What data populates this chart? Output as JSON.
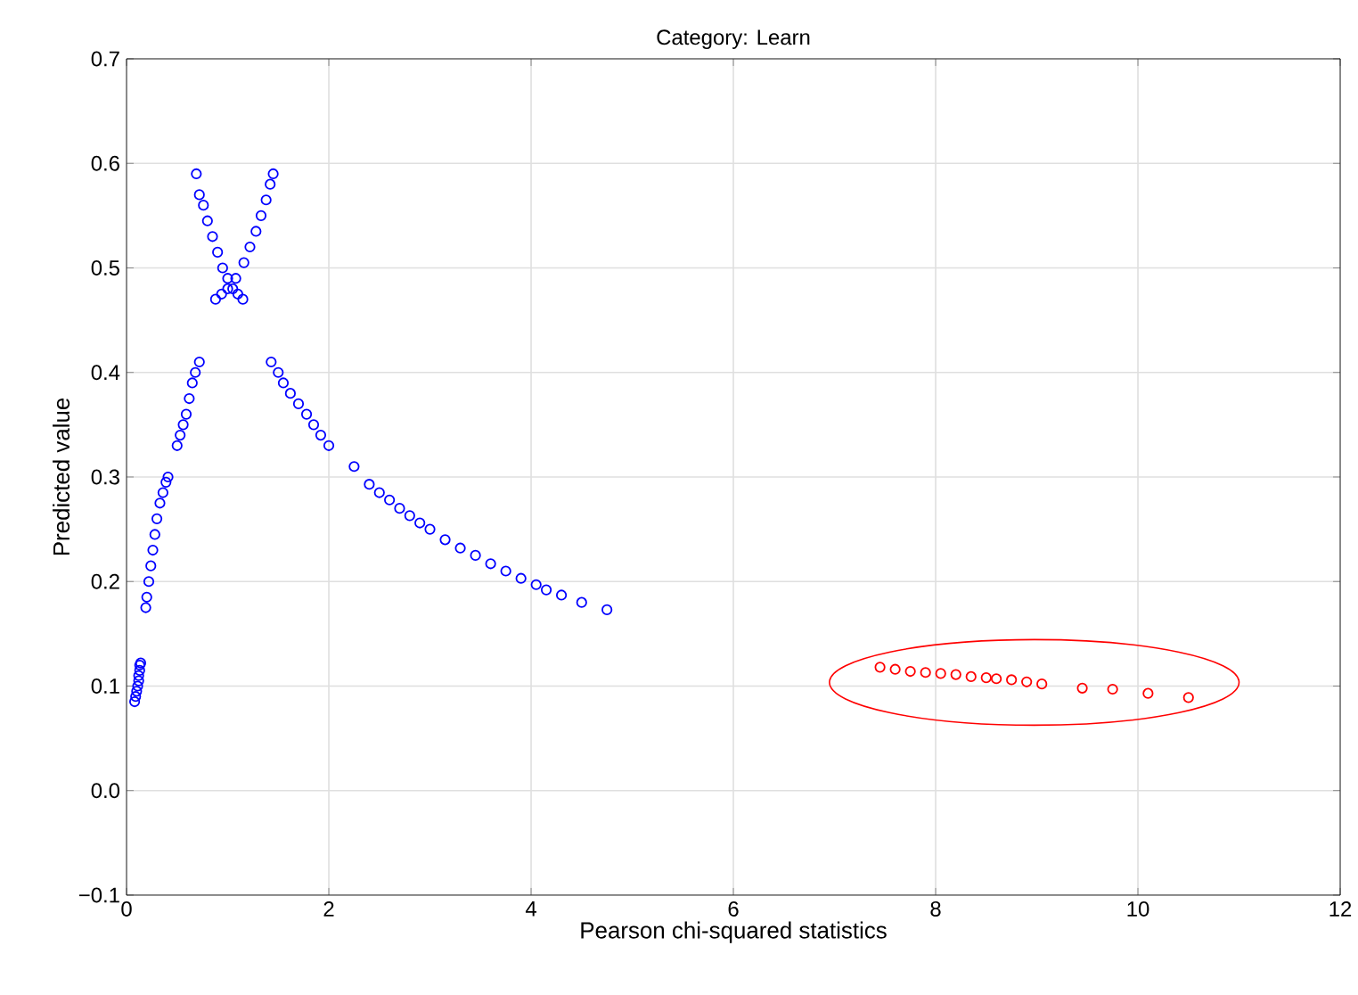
{
  "chart_data": {
    "type": "scatter",
    "title": "Category: Learn",
    "xlabel": "Pearson chi-squared statistics",
    "ylabel": "Predicted value",
    "xlim": [
      0,
      12
    ],
    "ylim": [
      -0.1,
      0.7
    ],
    "xticks": [
      0,
      2,
      4,
      6,
      8,
      10,
      12
    ],
    "yticks": [
      {
        "value": -0.1,
        "label": "−0.1"
      },
      {
        "value": 0,
        "label": "0.0"
      },
      {
        "value": 0.1,
        "label": "0.1"
      },
      {
        "value": 0.2,
        "label": "0.2"
      },
      {
        "value": 0.3,
        "label": "0.3"
      },
      {
        "value": 0.4,
        "label": "0.4"
      },
      {
        "value": 0.5,
        "label": "0.5"
      },
      {
        "value": 0.6,
        "label": "0.6"
      },
      {
        "value": 0.7,
        "label": "0.7"
      }
    ],
    "grid": true,
    "marker": "circle",
    "series": [
      {
        "color": "#0000ff",
        "x": [
          0.08,
          0.09,
          0.1,
          0.11,
          0.12,
          0.12,
          0.13,
          0.13,
          0.14,
          0.19,
          0.2,
          0.22,
          0.24,
          0.26,
          0.28,
          0.3,
          0.33,
          0.36,
          0.39,
          0.41,
          0.5,
          0.53,
          0.56,
          0.59,
          0.62,
          0.65,
          0.68,
          0.72,
          0.69,
          0.72,
          0.76,
          0.8,
          0.85,
          0.9,
          0.95,
          1.0,
          1.05,
          1.1,
          1.15,
          1.45,
          1.42,
          1.38,
          1.33,
          1.28,
          1.22,
          1.16,
          1.08,
          1.0,
          0.94,
          0.88,
          1.43,
          1.5,
          1.55,
          1.62,
          1.7,
          1.78,
          1.85,
          1.92,
          2.0,
          2.25,
          2.4,
          2.5,
          2.6,
          2.7,
          2.8,
          2.9,
          3.0,
          3.15,
          3.3,
          3.45,
          3.6,
          3.75,
          3.9,
          4.05,
          4.15,
          4.3,
          4.5,
          4.75
        ],
        "values": [
          0.085,
          0.09,
          0.095,
          0.1,
          0.105,
          0.11,
          0.115,
          0.12,
          0.122,
          0.175,
          0.185,
          0.2,
          0.215,
          0.23,
          0.245,
          0.26,
          0.275,
          0.285,
          0.295,
          0.3,
          0.33,
          0.34,
          0.35,
          0.36,
          0.375,
          0.39,
          0.4,
          0.41,
          0.59,
          0.57,
          0.56,
          0.545,
          0.53,
          0.515,
          0.5,
          0.49,
          0.48,
          0.475,
          0.47,
          0.59,
          0.58,
          0.565,
          0.55,
          0.535,
          0.52,
          0.505,
          0.49,
          0.48,
          0.475,
          0.47,
          0.41,
          0.4,
          0.39,
          0.38,
          0.37,
          0.36,
          0.35,
          0.34,
          0.33,
          0.31,
          0.293,
          0.285,
          0.278,
          0.27,
          0.263,
          0.256,
          0.25,
          0.24,
          0.232,
          0.225,
          0.217,
          0.21,
          0.203,
          0.197,
          0.192,
          0.187,
          0.18,
          0.173
        ]
      },
      {
        "color": "#ff0000",
        "x": [
          7.45,
          7.6,
          7.75,
          7.9,
          8.05,
          8.2,
          8.35,
          8.5,
          8.6,
          8.75,
          8.9,
          9.05,
          9.45,
          9.75,
          10.1,
          10.5
        ],
        "values": [
          0.118,
          0.116,
          0.114,
          0.113,
          0.112,
          0.111,
          0.109,
          0.108,
          0.107,
          0.106,
          0.104,
          0.102,
          0.098,
          0.097,
          0.093,
          0.089
        ]
      }
    ]
  }
}
